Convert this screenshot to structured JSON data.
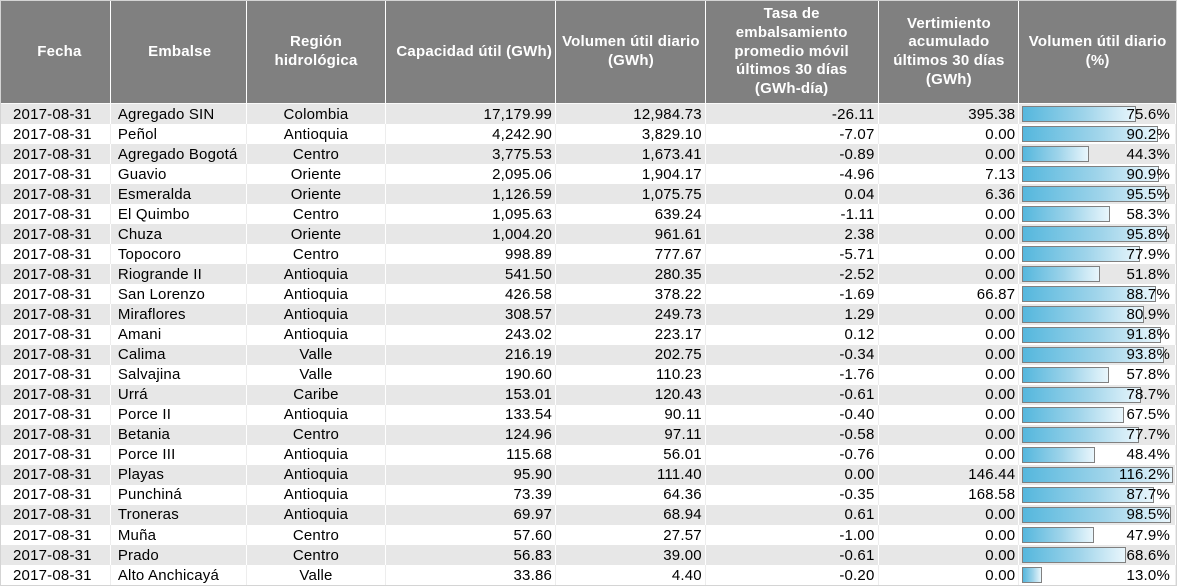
{
  "colors": {
    "header_bg": "#808080",
    "header_text": "#ffffff",
    "stripe_row_bg": "#e7e7e7",
    "plain_row_bg": "#ffffff",
    "bar_gradient_start": "#55b7dd",
    "bar_gradient_end": "#e9f6fc",
    "bar_border": "#808080"
  },
  "chart_data": {
    "type": "table",
    "title": "",
    "columns": [
      "Fecha",
      "Embalse",
      "Región hidrológica",
      "Capacidad útil (GWh)",
      "Volumen útil diario (GWh)",
      "Tasa de embalsamiento promedio móvil últimos 30 días (GWh-día)",
      "Vertimiento acumulado últimos 30 días (GWh)",
      "Volumen útil diario (%)"
    ],
    "bar_column": "Volumen útil diario (%)",
    "bar_scale_note": "bar width = percent of cell width, clipped at 100",
    "rows": [
      {
        "fecha": "2017-08-31",
        "embalse": "Agregado SIN",
        "region": "Colombia",
        "capacidad_gwh": "17,179.99",
        "volumen_gwh": "12,984.73",
        "tasa": "-26.11",
        "vertimiento": "395.38",
        "pct_label": "75.6%",
        "pct": 75.6
      },
      {
        "fecha": "2017-08-31",
        "embalse": "Peñol",
        "region": "Antioquia",
        "capacidad_gwh": "4,242.90",
        "volumen_gwh": "3,829.10",
        "tasa": "-7.07",
        "vertimiento": "0.00",
        "pct_label": "90.2%",
        "pct": 90.2
      },
      {
        "fecha": "2017-08-31",
        "embalse": "Agregado Bogotá",
        "region": "Centro",
        "capacidad_gwh": "3,775.53",
        "volumen_gwh": "1,673.41",
        "tasa": "-0.89",
        "vertimiento": "0.00",
        "pct_label": "44.3%",
        "pct": 44.3
      },
      {
        "fecha": "2017-08-31",
        "embalse": "Guavio",
        "region": "Oriente",
        "capacidad_gwh": "2,095.06",
        "volumen_gwh": "1,904.17",
        "tasa": "-4.96",
        "vertimiento": "7.13",
        "pct_label": "90.9%",
        "pct": 90.9
      },
      {
        "fecha": "2017-08-31",
        "embalse": "Esmeralda",
        "region": "Oriente",
        "capacidad_gwh": "1,126.59",
        "volumen_gwh": "1,075.75",
        "tasa": "0.04",
        "vertimiento": "6.36",
        "pct_label": "95.5%",
        "pct": 95.5
      },
      {
        "fecha": "2017-08-31",
        "embalse": "El Quimbo",
        "region": "Centro",
        "capacidad_gwh": "1,095.63",
        "volumen_gwh": "639.24",
        "tasa": "-1.11",
        "vertimiento": "0.00",
        "pct_label": "58.3%",
        "pct": 58.3
      },
      {
        "fecha": "2017-08-31",
        "embalse": "Chuza",
        "region": "Oriente",
        "capacidad_gwh": "1,004.20",
        "volumen_gwh": "961.61",
        "tasa": "2.38",
        "vertimiento": "0.00",
        "pct_label": "95.8%",
        "pct": 95.8
      },
      {
        "fecha": "2017-08-31",
        "embalse": "Topocoro",
        "region": "Centro",
        "capacidad_gwh": "998.89",
        "volumen_gwh": "777.67",
        "tasa": "-5.71",
        "vertimiento": "0.00",
        "pct_label": "77.9%",
        "pct": 77.9
      },
      {
        "fecha": "2017-08-31",
        "embalse": "Riogrande II",
        "region": "Antioquia",
        "capacidad_gwh": "541.50",
        "volumen_gwh": "280.35",
        "tasa": "-2.52",
        "vertimiento": "0.00",
        "pct_label": "51.8%",
        "pct": 51.8
      },
      {
        "fecha": "2017-08-31",
        "embalse": "San Lorenzo",
        "region": "Antioquia",
        "capacidad_gwh": "426.58",
        "volumen_gwh": "378.22",
        "tasa": "-1.69",
        "vertimiento": "66.87",
        "pct_label": "88.7%",
        "pct": 88.7
      },
      {
        "fecha": "2017-08-31",
        "embalse": "Miraflores",
        "region": "Antioquia",
        "capacidad_gwh": "308.57",
        "volumen_gwh": "249.73",
        "tasa": "1.29",
        "vertimiento": "0.00",
        "pct_label": "80.9%",
        "pct": 80.9
      },
      {
        "fecha": "2017-08-31",
        "embalse": "Amani",
        "region": "Antioquia",
        "capacidad_gwh": "243.02",
        "volumen_gwh": "223.17",
        "tasa": "0.12",
        "vertimiento": "0.00",
        "pct_label": "91.8%",
        "pct": 91.8
      },
      {
        "fecha": "2017-08-31",
        "embalse": "Calima",
        "region": "Valle",
        "capacidad_gwh": "216.19",
        "volumen_gwh": "202.75",
        "tasa": "-0.34",
        "vertimiento": "0.00",
        "pct_label": "93.8%",
        "pct": 93.8
      },
      {
        "fecha": "2017-08-31",
        "embalse": "Salvajina",
        "region": "Valle",
        "capacidad_gwh": "190.60",
        "volumen_gwh": "110.23",
        "tasa": "-1.76",
        "vertimiento": "0.00",
        "pct_label": "57.8%",
        "pct": 57.8
      },
      {
        "fecha": "2017-08-31",
        "embalse": "Urrá",
        "region": "Caribe",
        "capacidad_gwh": "153.01",
        "volumen_gwh": "120.43",
        "tasa": "-0.61",
        "vertimiento": "0.00",
        "pct_label": "78.7%",
        "pct": 78.7
      },
      {
        "fecha": "2017-08-31",
        "embalse": "Porce II",
        "region": "Antioquia",
        "capacidad_gwh": "133.54",
        "volumen_gwh": "90.11",
        "tasa": "-0.40",
        "vertimiento": "0.00",
        "pct_label": "67.5%",
        "pct": 67.5
      },
      {
        "fecha": "2017-08-31",
        "embalse": "Betania",
        "region": "Centro",
        "capacidad_gwh": "124.96",
        "volumen_gwh": "97.11",
        "tasa": "-0.58",
        "vertimiento": "0.00",
        "pct_label": "77.7%",
        "pct": 77.7
      },
      {
        "fecha": "2017-08-31",
        "embalse": "Porce III",
        "region": "Antioquia",
        "capacidad_gwh": "115.68",
        "volumen_gwh": "56.01",
        "tasa": "-0.76",
        "vertimiento": "0.00",
        "pct_label": "48.4%",
        "pct": 48.4
      },
      {
        "fecha": "2017-08-31",
        "embalse": "Playas",
        "region": "Antioquia",
        "capacidad_gwh": "95.90",
        "volumen_gwh": "111.40",
        "tasa": "0.00",
        "vertimiento": "146.44",
        "pct_label": "116.2%",
        "pct": 116.2
      },
      {
        "fecha": "2017-08-31",
        "embalse": "Punchiná",
        "region": "Antioquia",
        "capacidad_gwh": "73.39",
        "volumen_gwh": "64.36",
        "tasa": "-0.35",
        "vertimiento": "168.58",
        "pct_label": "87.7%",
        "pct": 87.7
      },
      {
        "fecha": "2017-08-31",
        "embalse": "Troneras",
        "region": "Antioquia",
        "capacidad_gwh": "69.97",
        "volumen_gwh": "68.94",
        "tasa": "0.61",
        "vertimiento": "0.00",
        "pct_label": "98.5%",
        "pct": 98.5
      },
      {
        "fecha": "2017-08-31",
        "embalse": "Muña",
        "region": "Centro",
        "capacidad_gwh": "57.60",
        "volumen_gwh": "27.57",
        "tasa": "-1.00",
        "vertimiento": "0.00",
        "pct_label": "47.9%",
        "pct": 47.9
      },
      {
        "fecha": "2017-08-31",
        "embalse": "Prado",
        "region": "Centro",
        "capacidad_gwh": "56.83",
        "volumen_gwh": "39.00",
        "tasa": "-0.61",
        "vertimiento": "0.00",
        "pct_label": "68.6%",
        "pct": 68.6
      },
      {
        "fecha": "2017-08-31",
        "embalse": "Alto Anchicayá",
        "region": "Valle",
        "capacidad_gwh": "33.86",
        "volumen_gwh": "4.40",
        "tasa": "-0.20",
        "vertimiento": "0.00",
        "pct_label": "13.0%",
        "pct": 13.0
      }
    ]
  }
}
